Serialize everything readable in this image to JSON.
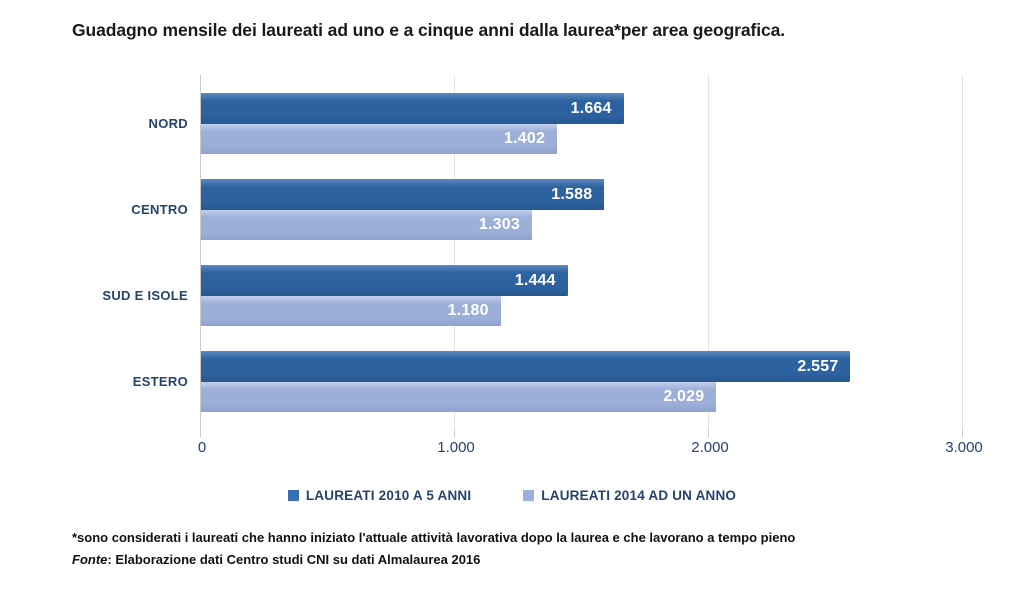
{
  "title": "Guadagno mensile dei laureati ad uno e a cinque anni dalla laurea*per area geografica.",
  "chart_data": {
    "type": "bar",
    "orientation": "horizontal",
    "title": "Guadagno mensile dei laureati ad uno e a cinque anni dalla laurea*per area geografica.",
    "categories": [
      "NORD",
      "CENTRO",
      "SUD E ISOLE",
      "ESTERO"
    ],
    "series": [
      {
        "name": "LAUREATI 2010 A 5 ANNI",
        "values": [
          1664,
          1588,
          1444,
          2557
        ],
        "value_labels": [
          "1.664",
          "1.588",
          "1.444",
          "2.557"
        ],
        "color": "#2d62a0",
        "color_top": "#5d89c0",
        "color_bottom": "#27588f",
        "legend_color": "#3a6db2"
      },
      {
        "name": "LAUREATI 2014 AD UN ANNO",
        "values": [
          1402,
          1303,
          1180,
          2029
        ],
        "value_labels": [
          "1.402",
          "1.303",
          "1.180",
          "2.029"
        ],
        "color": "#9cafd8",
        "color_top": "#c3cfeb",
        "color_bottom": "#8fa3d0",
        "legend_color": "#9cafd8"
      }
    ],
    "xlim": [
      0,
      3000
    ],
    "x_ticks": [
      {
        "value": 0,
        "label": "0"
      },
      {
        "value": 1000,
        "label": "1.000"
      },
      {
        "value": 2000,
        "label": "2.000"
      },
      {
        "value": 3000,
        "label": "3.000"
      }
    ],
    "grid": "vertical",
    "legend_position": "bottom"
  },
  "footnotes": {
    "note": "*sono considerati i laureati che hanno iniziato l'attuale attività lavorativa dopo la laurea e che lavorano a tempo pieno",
    "fonte_label": "Fonte",
    "fonte_text": ": Elaborazione dati Centro studi CNI su dati Almalaurea 2016"
  },
  "colors": {
    "text_navy": "#24436f",
    "gridline": "#e4e4e4",
    "axis_line": "#c9c9c9",
    "value_label": "#ffffff",
    "title_text": "#1a1a1a"
  }
}
